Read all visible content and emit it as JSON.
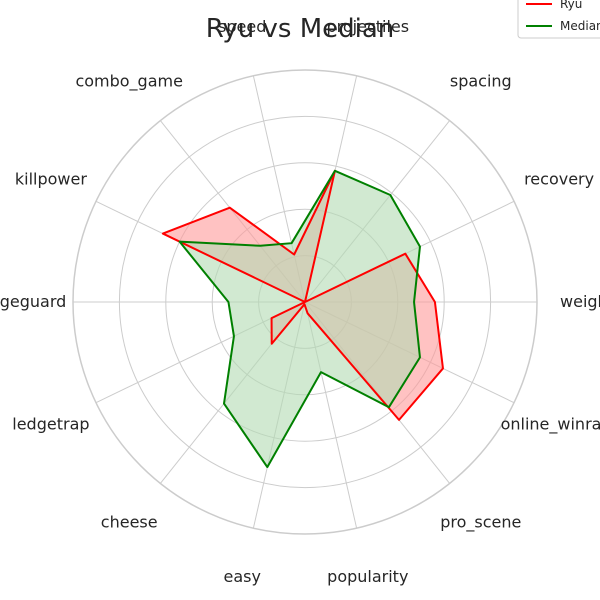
{
  "chart_data": {
    "type": "radar",
    "title": "Ryu vs Median",
    "axes": [
      "weight",
      "recovery",
      "spacing",
      "projectiles",
      "speed",
      "combo_game",
      "killpower",
      "edgeguard",
      "ledgetrap",
      "cheese",
      "easy",
      "popularity",
      "pro_scene",
      "online_winrate"
    ],
    "rlim": [
      0,
      1
    ],
    "grid": true,
    "legend_position": "top-right",
    "series": [
      {
        "name": "Ryu",
        "color": "#ff0000",
        "fill": "#ff9999",
        "values": [
          0.56,
          0.48,
          0.0,
          0.58,
          0.21,
          0.52,
          0.68,
          0.0,
          0.16,
          0.23,
          0.01,
          0.05,
          0.65,
          0.66
        ]
      },
      {
        "name": "Median",
        "color": "#008000",
        "fill": "#b3dbb3",
        "values": [
          0.47,
          0.55,
          0.59,
          0.58,
          0.26,
          0.31,
          0.6,
          0.33,
          0.34,
          0.56,
          0.73,
          0.31,
          0.58,
          0.55
        ]
      }
    ]
  }
}
